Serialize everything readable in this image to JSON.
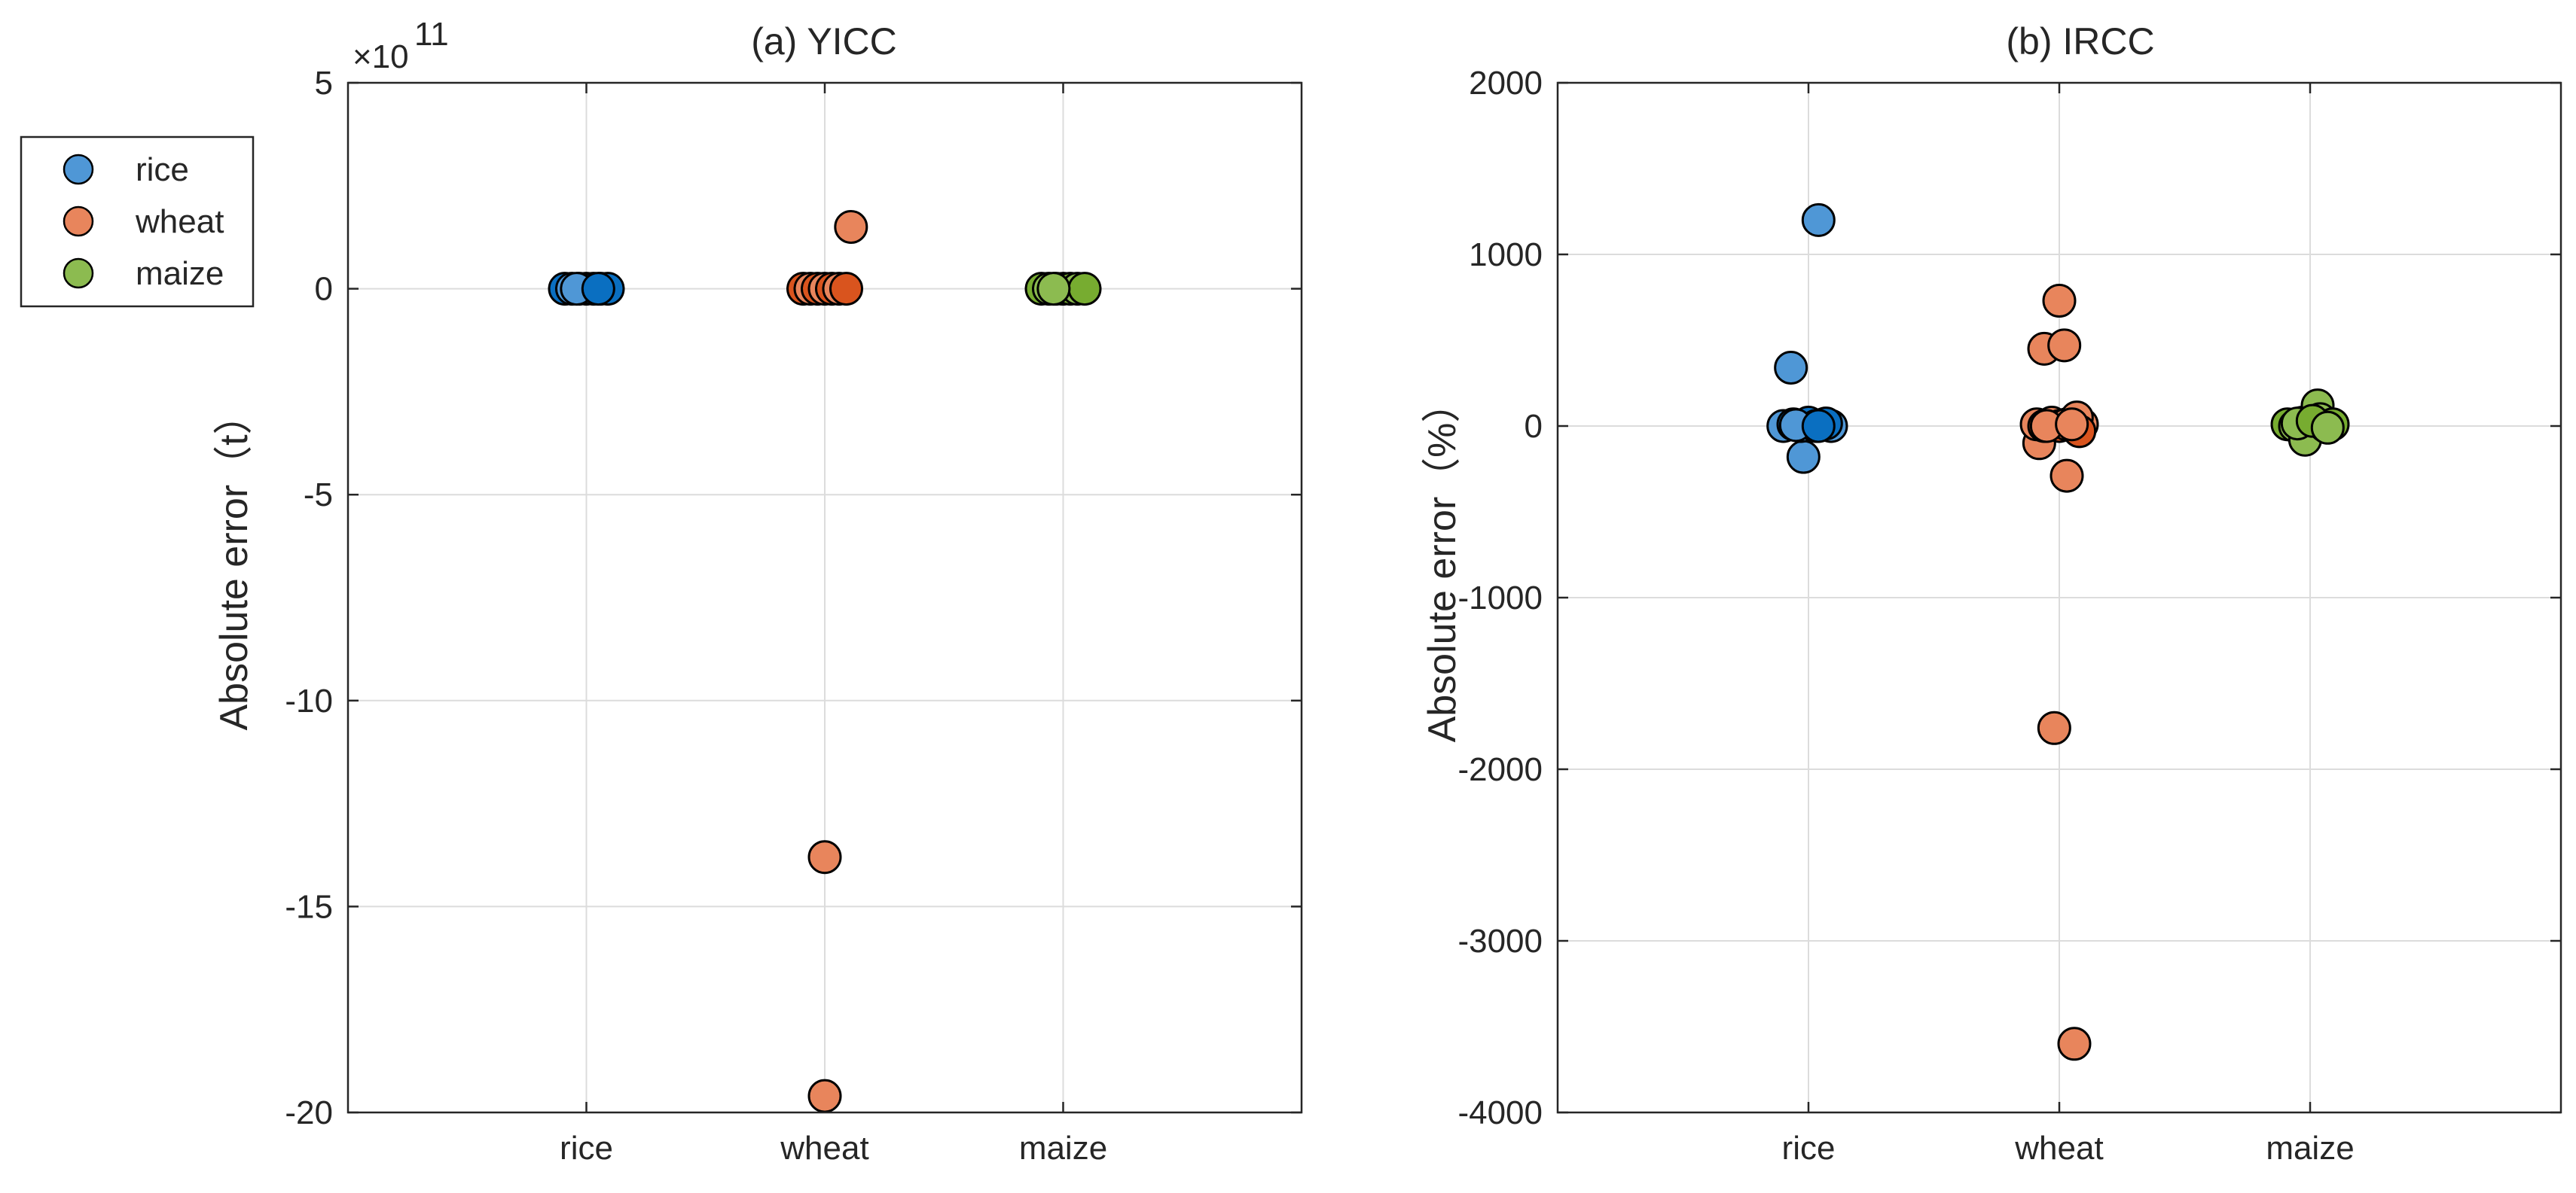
{
  "legend": {
    "placement": "left-outside",
    "entries": [
      {
        "label": "rice",
        "color": "#4F97D6"
      },
      {
        "label": "wheat",
        "color": "#E8855C"
      },
      {
        "label": "maize",
        "color": "#8CBB50"
      }
    ]
  },
  "chart_data": [
    {
      "type": "scatter",
      "title": "(a) YICC",
      "ylabel": "Absolute error（t）",
      "ylim": [
        -20,
        5
      ],
      "y_multiplier_label": "×10",
      "y_multiplier_exponent": "11",
      "yticks": [
        {
          "value": 5,
          "label": "5"
        },
        {
          "value": 0,
          "label": "0"
        },
        {
          "value": -5,
          "label": "-5"
        },
        {
          "value": -10,
          "label": "-10"
        },
        {
          "value": -15,
          "label": "-15"
        },
        {
          "value": -20,
          "label": "-20"
        }
      ],
      "categories": [
        "rice",
        "wheat",
        "maize"
      ],
      "grid": true,
      "series": [
        {
          "name": "rice",
          "color": "#4F97D6",
          "dark_color": "#0A6FC1",
          "category": 0,
          "points": [
            [
              -0.09,
              0
            ],
            [
              -0.06,
              0
            ],
            [
              -0.03,
              0
            ],
            [
              0,
              0
            ],
            [
              0.03,
              0
            ],
            [
              0.06,
              0
            ],
            [
              0.09,
              0
            ],
            [
              -0.04,
              0
            ],
            [
              0.05,
              0
            ]
          ]
        },
        {
          "name": "wheat",
          "color": "#E8855C",
          "dark_color": "#D9541E",
          "category": 1,
          "points": [
            [
              -0.09,
              0
            ],
            [
              -0.06,
              0
            ],
            [
              -0.03,
              0
            ],
            [
              0,
              0
            ],
            [
              0.03,
              0
            ],
            [
              0.06,
              0
            ],
            [
              0.09,
              0
            ],
            [
              0.11,
              1.5
            ],
            [
              0,
              -13.8
            ],
            [
              0,
              -19.6
            ]
          ]
        },
        {
          "name": "maize",
          "color": "#8CBB50",
          "dark_color": "#77AC30",
          "category": 2,
          "points": [
            [
              -0.09,
              0
            ],
            [
              -0.06,
              0
            ],
            [
              -0.03,
              0
            ],
            [
              0,
              0
            ],
            [
              0.03,
              0
            ],
            [
              0.06,
              0
            ],
            [
              0.09,
              0
            ],
            [
              -0.04,
              0
            ]
          ]
        }
      ]
    },
    {
      "type": "scatter",
      "title": "(b) IRCC",
      "ylabel": "Absolute error（%）",
      "ylim": [
        -4000,
        2000
      ],
      "yticks": [
        {
          "value": 2000,
          "label": "2000"
        },
        {
          "value": 1000,
          "label": "1000"
        },
        {
          "value": 0,
          "label": "0"
        },
        {
          "value": -1000,
          "label": "-1000"
        },
        {
          "value": -2000,
          "label": "-2000"
        },
        {
          "value": -3000,
          "label": "-3000"
        },
        {
          "value": -4000,
          "label": "-4000"
        }
      ],
      "categories": [
        "rice",
        "wheat",
        "maize"
      ],
      "grid": true,
      "series": [
        {
          "name": "rice",
          "color": "#4F97D6",
          "dark_color": "#0A6FC1",
          "category": 0,
          "points": [
            [
              0.04,
              1200
            ],
            [
              -0.07,
              340
            ],
            [
              -0.02,
              -180
            ],
            [
              -0.1,
              0
            ],
            [
              -0.06,
              10
            ],
            [
              -0.03,
              0
            ],
            [
              0,
              20
            ],
            [
              0.03,
              0
            ],
            [
              0.06,
              10
            ],
            [
              0.09,
              0
            ],
            [
              0.07,
              15
            ],
            [
              -0.05,
              5
            ],
            [
              0.04,
              0
            ]
          ]
        },
        {
          "name": "wheat",
          "color": "#E8855C",
          "dark_color": "#D9541E",
          "category": 1,
          "points": [
            [
              0,
              730
            ],
            [
              -0.06,
              450
            ],
            [
              0.02,
              470
            ],
            [
              -0.08,
              -100
            ],
            [
              0.03,
              -290
            ],
            [
              -0.02,
              -1760
            ],
            [
              0.06,
              -3600
            ],
            [
              -0.09,
              10
            ],
            [
              -0.06,
              0
            ],
            [
              -0.03,
              20
            ],
            [
              0,
              0
            ],
            [
              0.03,
              10
            ],
            [
              0.06,
              0
            ],
            [
              0.09,
              10
            ],
            [
              0.07,
              50
            ],
            [
              -0.05,
              0
            ],
            [
              0.08,
              -30
            ],
            [
              0.05,
              10
            ]
          ]
        },
        {
          "name": "maize",
          "color": "#8CBB50",
          "dark_color": "#77AC30",
          "category": 2,
          "points": [
            [
              -0.09,
              10
            ],
            [
              -0.06,
              0
            ],
            [
              -0.03,
              20
            ],
            [
              0,
              0
            ],
            [
              0.03,
              120
            ],
            [
              0.04,
              40
            ],
            [
              -0.02,
              -80
            ],
            [
              0.06,
              0
            ],
            [
              0.09,
              10
            ],
            [
              -0.05,
              15
            ],
            [
              0.01,
              30
            ],
            [
              0.07,
              -10
            ]
          ]
        }
      ]
    }
  ]
}
